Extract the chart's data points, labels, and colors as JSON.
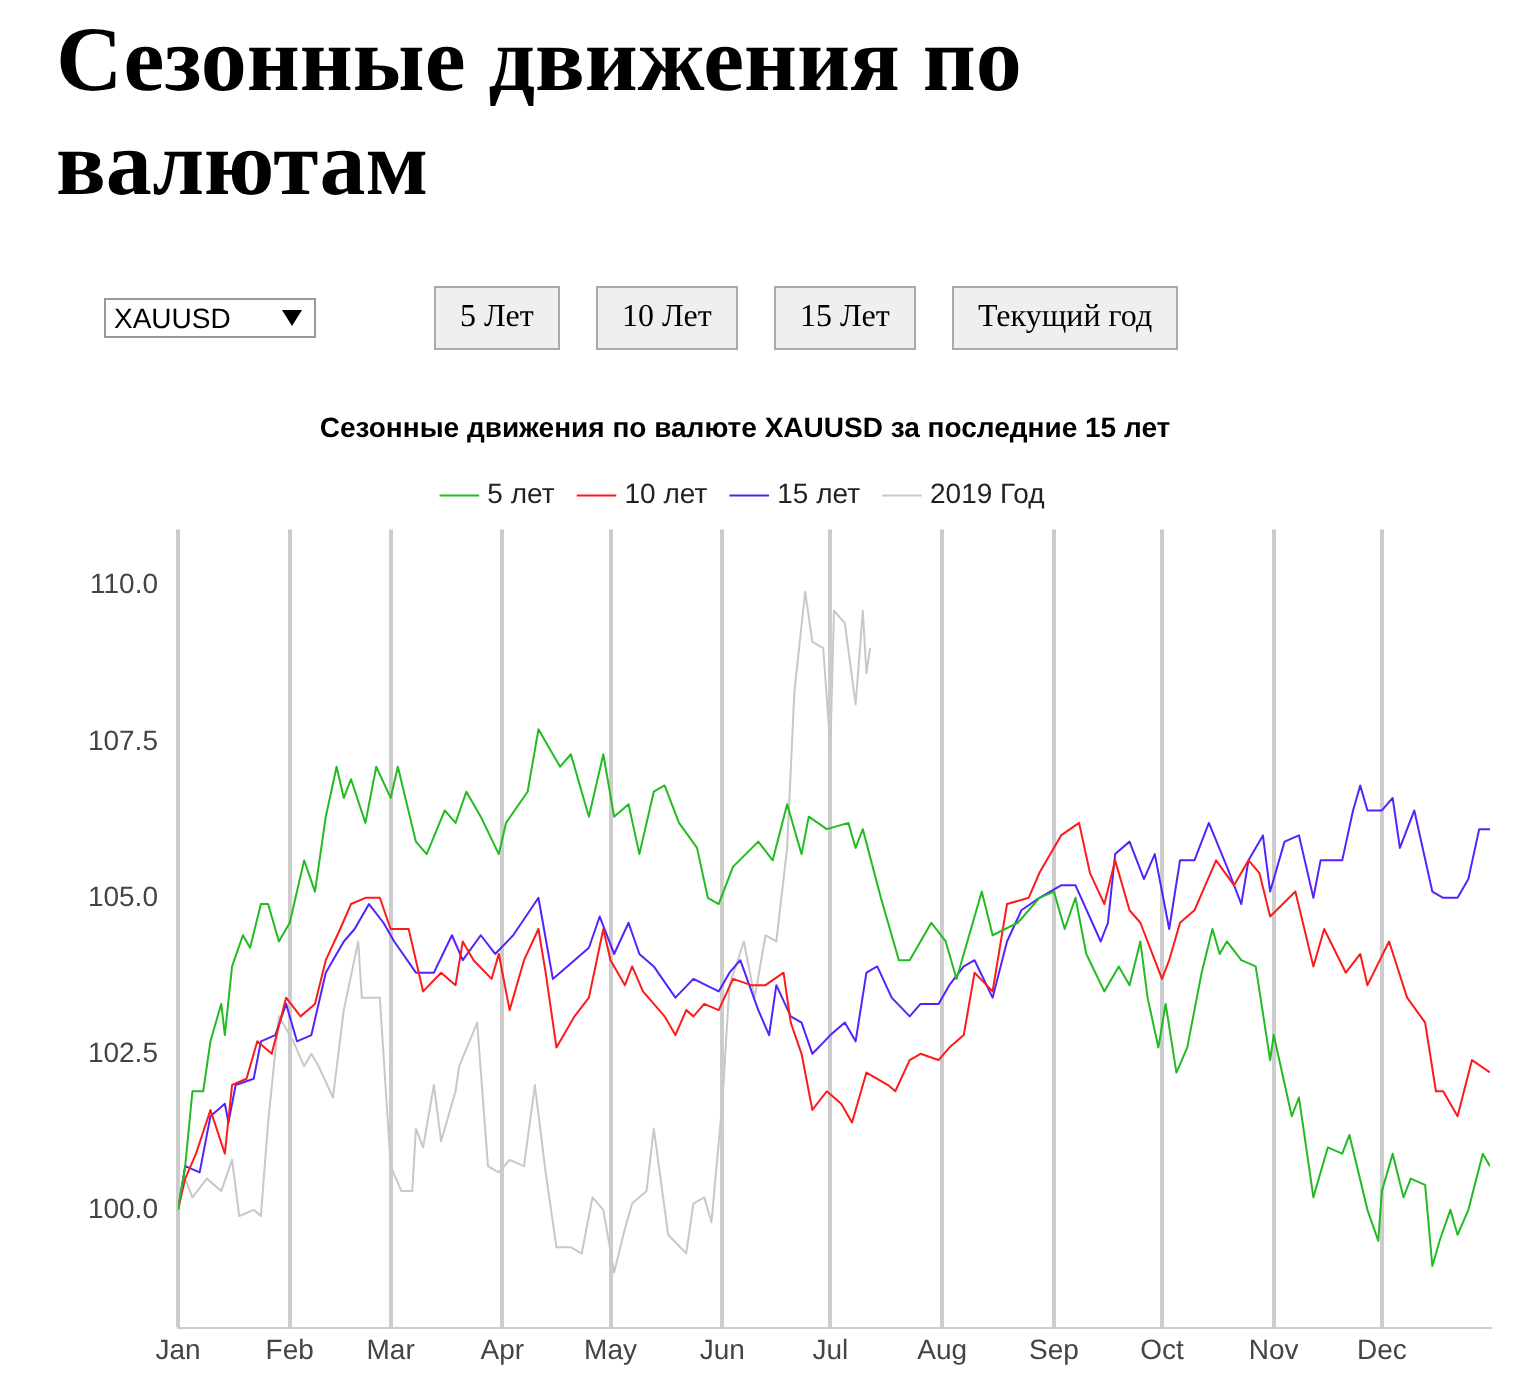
{
  "chart_data": {
    "type": "line",
    "title": "Сезонные движения по валютам",
    "subtitle": "Сезонные движения по валюте XAUUSD за последние 15 лет",
    "annotations": [
      "XAUUSD",
      "5 Лет",
      "10 Лет",
      "15 Лет",
      "Текущий год"
    ],
    "xticks": [
      {
        "value": "--01-01",
        "label": "Jan"
      },
      {
        "value": "--02-01",
        "label": "Feb"
      },
      {
        "value": "--03-01",
        "label": "Mar"
      },
      {
        "value": "--04-01",
        "label": "Apr"
      },
      {
        "value": "--05-01",
        "label": "May"
      },
      {
        "value": "--06-01",
        "label": "Jun"
      },
      {
        "value": "--07-01",
        "label": "Jul"
      },
      {
        "value": "--08-01",
        "label": "Aug"
      },
      {
        "value": "--09-01",
        "label": "Sep"
      },
      {
        "value": "--10-01",
        "label": "Oct"
      },
      {
        "value": "--11-01",
        "label": "Nov"
      },
      {
        "value": "--12-01",
        "label": "Dec"
      }
    ],
    "xlim": [
      "--01-01",
      "--12-31"
    ],
    "ylim": [
      98.1,
      110.9
    ],
    "yticks": [
      {
        "value": 100,
        "label": "100.0"
      },
      {
        "value": 102.5,
        "label": "102.5"
      },
      {
        "value": 105,
        "label": "105.0"
      },
      {
        "value": 107.5,
        "label": "107.5"
      },
      {
        "value": 110,
        "label": "110.0"
      }
    ],
    "grid": "x",
    "legend": "top",
    "marker": "none",
    "line_style": "solid",
    "series": [
      {
        "name": "5 лет",
        "color": "#22bb22",
        "x": [
          "--01-01",
          "--01-03",
          "--01-05",
          "--01-08",
          "--01-10",
          "--01-13",
          "--01-14",
          "--01-16",
          "--01-19",
          "--01-21",
          "--01-24",
          "--01-26",
          "--01-29",
          "--02-01",
          "--02-05",
          "--02-08",
          "--02-11",
          "--02-14",
          "--02-16",
          "--02-18",
          "--02-22",
          "--02-25",
          "--03-01",
          "--03-03",
          "--03-08",
          "--03-11",
          "--03-16",
          "--03-19",
          "--03-22",
          "--03-26",
          "--03-31",
          "--04-02",
          "--04-08",
          "--04-11",
          "--04-17",
          "--04-20",
          "--04-25",
          "--04-29",
          "--05-02",
          "--05-06",
          "--05-09",
          "--05-13",
          "--05-16",
          "--05-20",
          "--05-25",
          "--05-28",
          "--05-31",
          "--06-04",
          "--06-11",
          "--06-15",
          "--06-19",
          "--06-23",
          "--06-25",
          "--06-30",
          "--07-06",
          "--07-08",
          "--07-10",
          "--07-15",
          "--07-20",
          "--07-23",
          "--07-29",
          "--08-02",
          "--08-05",
          "--08-12",
          "--08-15",
          "--08-22",
          "--08-28",
          "--09-01",
          "--09-04",
          "--09-07",
          "--09-10",
          "--09-15",
          "--09-19",
          "--09-22",
          "--09-25",
          "--09-27",
          "--09-30",
          "--10-02",
          "--10-05",
          "--10-08",
          "--10-12",
          "--10-15",
          "--10-17",
          "--10-19",
          "--10-23",
          "--10-27",
          "--10-31",
          "--11-01",
          "--11-06",
          "--11-08",
          "--11-12",
          "--11-16",
          "--11-20",
          "--11-22",
          "--11-27",
          "--11-30",
          "--12-01",
          "--12-04",
          "--12-07",
          "--12-09",
          "--12-13",
          "--12-15",
          "--12-17",
          "--12-20",
          "--12-22",
          "--12-25",
          "--12-29",
          "--12-31"
        ],
        "values": [
          100.0,
          100.7,
          101.9,
          101.9,
          102.7,
          103.3,
          102.8,
          103.9,
          104.4,
          104.2,
          104.9,
          104.9,
          104.3,
          104.6,
          105.6,
          105.1,
          106.3,
          107.1,
          106.6,
          106.9,
          106.2,
          107.1,
          106.6,
          107.1,
          105.9,
          105.7,
          106.4,
          106.2,
          106.7,
          106.3,
          105.7,
          106.2,
          106.7,
          107.7,
          107.1,
          107.3,
          106.3,
          107.3,
          106.3,
          106.5,
          105.7,
          106.7,
          106.8,
          106.2,
          105.8,
          105.0,
          104.9,
          105.5,
          105.9,
          105.6,
          106.5,
          105.7,
          106.3,
          106.1,
          106.2,
          105.8,
          106.1,
          105.0,
          104.0,
          104.0,
          104.6,
          104.3,
          103.7,
          105.1,
          104.4,
          104.6,
          105.0,
          105.1,
          104.5,
          105.0,
          104.1,
          103.5,
          103.9,
          103.6,
          104.3,
          103.4,
          102.6,
          103.3,
          102.2,
          102.6,
          103.8,
          104.5,
          104.1,
          104.3,
          104.0,
          103.9,
          102.4,
          102.8,
          101.5,
          101.8,
          100.2,
          101.0,
          100.9,
          101.2,
          100.0,
          99.5,
          100.3,
          100.9,
          100.2,
          100.5,
          100.4,
          99.1,
          99.5,
          100.0,
          99.6,
          100.0,
          100.9,
          100.7
        ]
      },
      {
        "name": "10 лет",
        "color": "#ff1a1a",
        "x": [
          "--01-01",
          "--01-03",
          "--01-06",
          "--01-10",
          "--01-14",
          "--01-16",
          "--01-20",
          "--01-23",
          "--01-27",
          "--01-31",
          "--02-04",
          "--02-08",
          "--02-11",
          "--02-15",
          "--02-18",
          "--02-22",
          "--02-26",
          "--03-01",
          "--03-06",
          "--03-10",
          "--03-15",
          "--03-19",
          "--03-21",
          "--03-24",
          "--03-29",
          "--03-31",
          "--04-03",
          "--04-07",
          "--04-11",
          "--04-13",
          "--04-16",
          "--04-21",
          "--04-25",
          "--04-29",
          "--05-01",
          "--05-05",
          "--05-07",
          "--05-10",
          "--05-16",
          "--05-19",
          "--05-22",
          "--05-24",
          "--05-27",
          "--05-31",
          "--06-04",
          "--06-09",
          "--06-13",
          "--06-18",
          "--06-20",
          "--06-23",
          "--06-26",
          "--06-30",
          "--07-04",
          "--07-07",
          "--07-11",
          "--07-17",
          "--07-19",
          "--07-23",
          "--07-26",
          "--07-31",
          "--08-03",
          "--08-07",
          "--08-10",
          "--08-15",
          "--08-19",
          "--08-25",
          "--08-28",
          "--09-03",
          "--09-08",
          "--09-11",
          "--09-15",
          "--09-18",
          "--09-22",
          "--09-25",
          "--10-01",
          "--10-03",
          "--10-06",
          "--10-10",
          "--10-16",
          "--10-21",
          "--10-25",
          "--10-28",
          "--10-31",
          "--11-07",
          "--11-12",
          "--11-15",
          "--11-21",
          "--11-25",
          "--11-27",
          "--12-03",
          "--12-08",
          "--12-13",
          "--12-16",
          "--12-18",
          "--12-22",
          "--12-26",
          "--12-31"
        ],
        "values": [
          100.0,
          100.5,
          100.9,
          101.6,
          100.9,
          102.0,
          102.1,
          102.7,
          102.5,
          103.4,
          103.1,
          103.3,
          104.0,
          104.5,
          104.9,
          105.0,
          105.0,
          104.5,
          104.5,
          103.5,
          103.8,
          103.6,
          104.3,
          104.0,
          103.7,
          104.1,
          103.2,
          104.0,
          104.5,
          103.8,
          102.6,
          103.1,
          103.4,
          104.5,
          104.0,
          103.6,
          103.9,
          103.5,
          103.1,
          102.8,
          103.2,
          103.1,
          103.3,
          103.2,
          103.7,
          103.6,
          103.6,
          103.8,
          103.0,
          102.5,
          101.6,
          101.9,
          101.7,
          101.4,
          102.2,
          102.0,
          101.9,
          102.4,
          102.5,
          102.4,
          102.6,
          102.8,
          103.8,
          103.5,
          104.9,
          105.0,
          105.4,
          106.0,
          106.2,
          105.4,
          104.9,
          105.6,
          104.8,
          104.6,
          103.7,
          104.0,
          104.6,
          104.8,
          105.6,
          105.2,
          105.6,
          105.4,
          104.7,
          105.1,
          103.9,
          104.5,
          103.8,
          104.1,
          103.6,
          104.3,
          103.4,
          103.0,
          101.9,
          101.9,
          101.5,
          102.4,
          102.2
        ]
      },
      {
        "name": "15 лет",
        "color": "#5522ff",
        "x": [
          "--01-01",
          "--01-03",
          "--01-07",
          "--01-10",
          "--01-14",
          "--01-15",
          "--01-17",
          "--01-22",
          "--01-24",
          "--01-28",
          "--01-31",
          "--02-03",
          "--02-07",
          "--02-11",
          "--02-16",
          "--02-19",
          "--02-23",
          "--02-27",
          "--03-02",
          "--03-08",
          "--03-13",
          "--03-18",
          "--03-21",
          "--03-26",
          "--03-30",
          "--04-04",
          "--04-11",
          "--04-15",
          "--04-21",
          "--04-25",
          "--04-28",
          "--05-02",
          "--05-06",
          "--05-09",
          "--05-13",
          "--05-19",
          "--05-24",
          "--05-31",
          "--06-03",
          "--06-06",
          "--06-11",
          "--06-14",
          "--06-16",
          "--06-20",
          "--06-23",
          "--06-26",
          "--07-01",
          "--07-05",
          "--07-08",
          "--07-11",
          "--07-14",
          "--07-18",
          "--07-23",
          "--07-26",
          "--07-31",
          "--08-03",
          "--08-07",
          "--08-10",
          "--08-15",
          "--08-19",
          "--08-23",
          "--08-28",
          "--09-03",
          "--09-07",
          "--09-14",
          "--09-16",
          "--09-18",
          "--09-22",
          "--09-26",
          "--09-29",
          "--10-03",
          "--10-06",
          "--10-10",
          "--10-14",
          "--10-19",
          "--10-23",
          "--10-25",
          "--10-29",
          "--10-31",
          "--11-04",
          "--11-08",
          "--11-12",
          "--11-14",
          "--11-20",
          "--11-23",
          "--11-25",
          "--11-27",
          "--12-01",
          "--12-04",
          "--12-06",
          "--12-10",
          "--12-15",
          "--12-18",
          "--12-22",
          "--12-25",
          "--12-28",
          "--12-31"
        ],
        "values": [
          100.0,
          100.7,
          100.6,
          101.5,
          101.7,
          101.4,
          102.0,
          102.1,
          102.7,
          102.8,
          103.3,
          102.7,
          102.8,
          103.8,
          104.3,
          104.5,
          104.9,
          104.6,
          104.3,
          103.8,
          103.8,
          104.4,
          104.0,
          104.4,
          104.1,
          104.4,
          105.0,
          103.7,
          104.0,
          104.2,
          104.7,
          104.1,
          104.6,
          104.1,
          103.9,
          103.4,
          103.7,
          103.5,
          103.8,
          104.0,
          103.2,
          102.8,
          103.6,
          103.1,
          103.0,
          102.5,
          102.8,
          103.0,
          102.7,
          103.8,
          103.9,
          103.4,
          103.1,
          103.3,
          103.3,
          103.6,
          103.9,
          104.0,
          103.4,
          104.3,
          104.8,
          105.0,
          105.2,
          105.2,
          104.3,
          104.6,
          105.7,
          105.9,
          105.3,
          105.7,
          104.5,
          105.6,
          105.6,
          106.2,
          105.5,
          104.9,
          105.6,
          106.0,
          105.1,
          105.9,
          106.0,
          105.0,
          105.6,
          105.6,
          106.4,
          106.8,
          106.4,
          106.4,
          106.6,
          105.8,
          106.4,
          105.1,
          105.0,
          105.0,
          105.3,
          106.1,
          106.1
        ]
      },
      {
        "name": "2019 Год",
        "color": "#c8c8c8",
        "x": [
          "--01-01",
          "--01-03",
          "--01-05",
          "--01-09",
          "--01-13",
          "--01-16",
          "--01-18",
          "--01-22",
          "--01-24",
          "--01-26",
          "--01-29",
          "--02-02",
          "--02-05",
          "--02-07",
          "--02-09",
          "--02-13",
          "--02-16",
          "--02-20",
          "--02-21",
          "--02-26",
          "--03-01",
          "--03-04",
          "--03-07",
          "--03-08",
          "--03-10",
          "--03-13",
          "--03-15",
          "--03-19",
          "--03-20",
          "--03-25",
          "--03-28",
          "--03-31",
          "--04-03",
          "--04-07",
          "--04-10",
          "--04-13",
          "--04-16",
          "--04-20",
          "--04-23",
          "--04-26",
          "--04-29",
          "--05-02",
          "--05-05",
          "--05-07",
          "--05-11",
          "--05-13",
          "--05-17",
          "--05-22",
          "--05-24",
          "--05-27",
          "--05-29",
          "--06-01",
          "--06-03",
          "--06-07",
          "--06-10",
          "--06-13",
          "--06-16",
          "--06-19",
          "--06-21",
          "--06-24",
          "--06-26",
          "--06-29",
          "--07-01",
          "--07-02",
          "--07-05",
          "--07-08",
          "--07-10",
          "--07-11",
          "--07-12"
        ],
        "values": [
          100.0,
          100.5,
          100.2,
          100.5,
          100.3,
          100.8,
          99.9,
          100.0,
          99.9,
          101.4,
          103.1,
          102.7,
          102.3,
          102.5,
          102.3,
          101.8,
          103.2,
          104.3,
          103.4,
          103.4,
          100.7,
          100.3,
          100.3,
          101.3,
          101.0,
          102.0,
          101.1,
          101.9,
          102.3,
          103.0,
          100.7,
          100.6,
          100.8,
          100.7,
          102.0,
          100.6,
          99.4,
          99.4,
          99.3,
          100.2,
          100.0,
          99.0,
          99.7,
          100.1,
          100.3,
          101.3,
          99.6,
          99.3,
          100.1,
          100.2,
          99.8,
          101.7,
          103.6,
          104.3,
          103.4,
          104.4,
          104.3,
          105.8,
          108.3,
          109.9,
          109.1,
          109.0,
          107.4,
          109.6,
          109.4,
          108.1,
          109.6,
          108.6,
          109.0
        ]
      }
    ]
  }
}
